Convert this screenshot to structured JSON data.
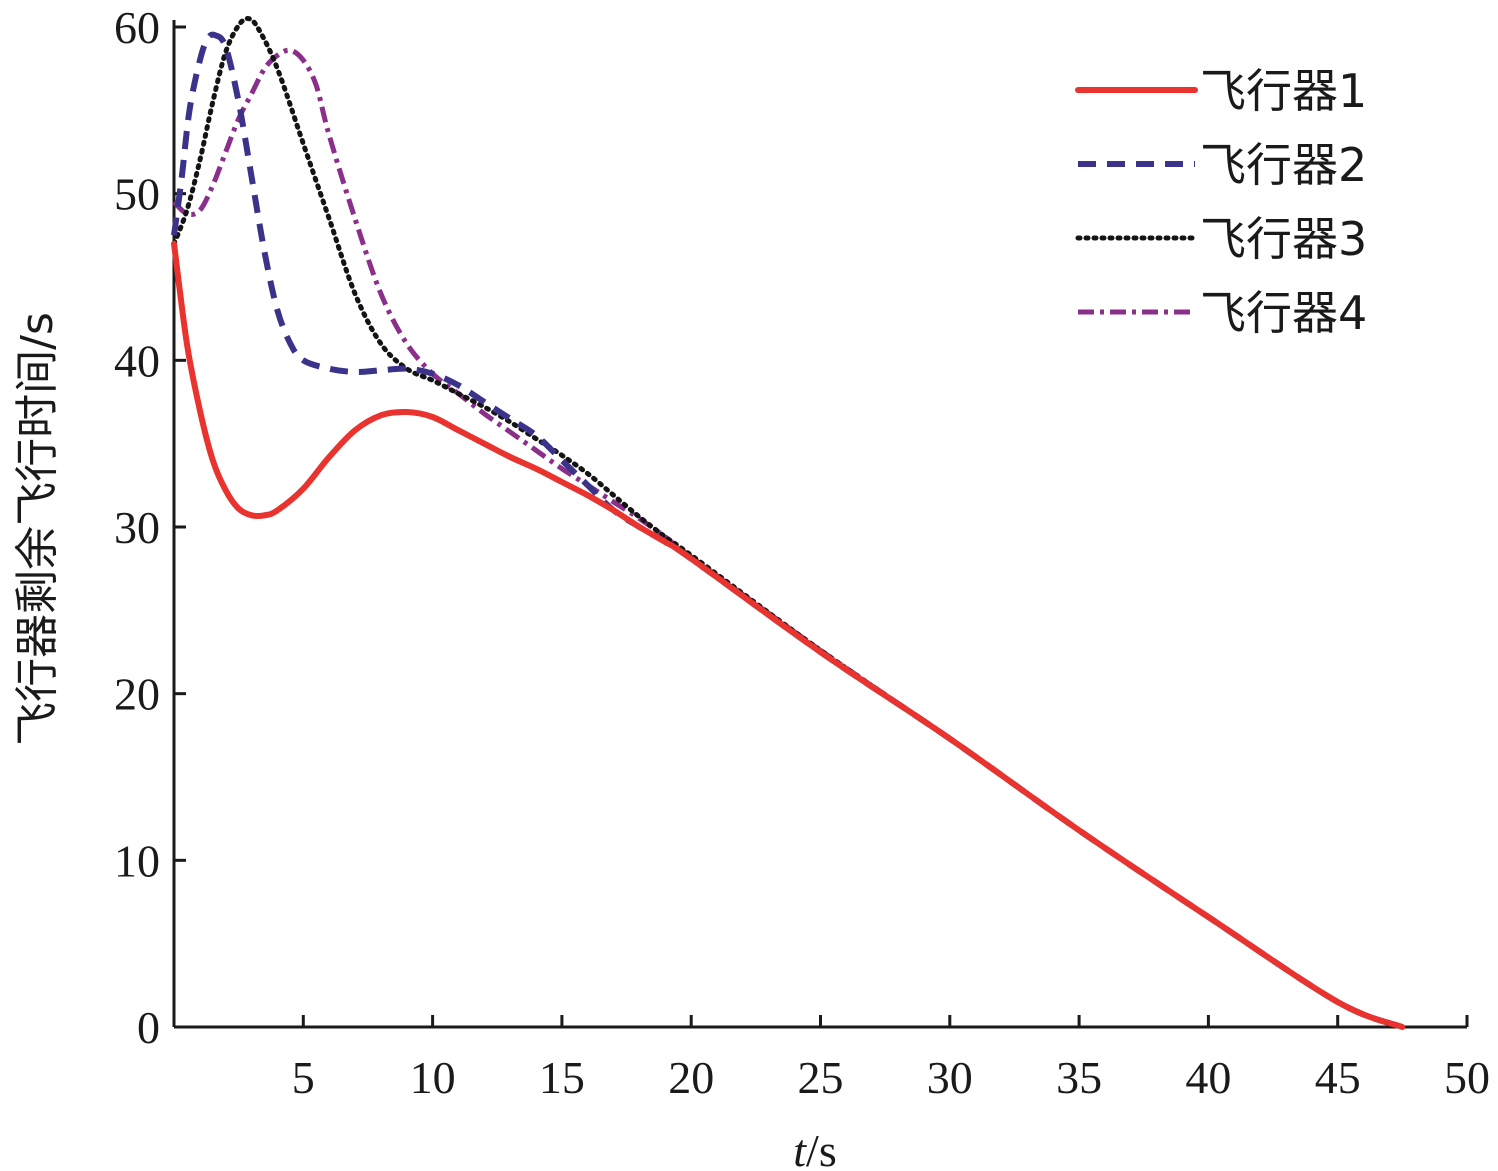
{
  "chart_data": {
    "type": "line",
    "xlabel": {
      "italic": "t",
      "unit": "/s"
    },
    "ylabel": "飞行器剩余飞行时间/s",
    "xlim": [
      0,
      50
    ],
    "ylim": [
      0,
      60
    ],
    "xticks": [
      5,
      10,
      15,
      20,
      25,
      30,
      35,
      40,
      45,
      50
    ],
    "yticks": [
      0,
      10,
      20,
      30,
      40,
      50,
      60
    ],
    "grid": false,
    "legend_position": "top-right",
    "series": [
      {
        "name": "飞行器1",
        "color": "#e8332f",
        "style": "solid",
        "points": [
          [
            0,
            47
          ],
          [
            0.5,
            41
          ],
          [
            1,
            37
          ],
          [
            1.5,
            34
          ],
          [
            2,
            32.2
          ],
          [
            2.5,
            31.1
          ],
          [
            3,
            30.7
          ],
          [
            3.5,
            30.7
          ],
          [
            4,
            31
          ],
          [
            5,
            32.3
          ],
          [
            6,
            34.2
          ],
          [
            7,
            35.8
          ],
          [
            8,
            36.7
          ],
          [
            9,
            36.9
          ],
          [
            10,
            36.6
          ],
          [
            11,
            35.8
          ],
          [
            12,
            35
          ],
          [
            13,
            34.2
          ],
          [
            14,
            33.5
          ],
          [
            15,
            32.7
          ],
          [
            16,
            31.9
          ],
          [
            17,
            31
          ],
          [
            18,
            30
          ],
          [
            19,
            29.1
          ],
          [
            20,
            28.1
          ],
          [
            25,
            22.5
          ],
          [
            30,
            17.3
          ],
          [
            35,
            11.8
          ],
          [
            40,
            6.6
          ],
          [
            45,
            1.5
          ],
          [
            47.5,
            0
          ]
        ]
      },
      {
        "name": "飞行器2",
        "color": "#3a3389",
        "style": "dashed",
        "points": [
          [
            0,
            47.5
          ],
          [
            0.3,
            51
          ],
          [
            0.6,
            55
          ],
          [
            1,
            58
          ],
          [
            1.3,
            59.3
          ],
          [
            1.6,
            59.5
          ],
          [
            2,
            58.8
          ],
          [
            2.5,
            55.5
          ],
          [
            3,
            51
          ],
          [
            3.5,
            46.5
          ],
          [
            4,
            43
          ],
          [
            4.5,
            41
          ],
          [
            5,
            40
          ],
          [
            6,
            39.5
          ],
          [
            7,
            39.3
          ],
          [
            8,
            39.4
          ],
          [
            9,
            39.5
          ],
          [
            10,
            39.2
          ],
          [
            11,
            38.5
          ],
          [
            12,
            37.5
          ],
          [
            13,
            36.5
          ],
          [
            14,
            35.5
          ],
          [
            15,
            34
          ],
          [
            16,
            32.5
          ],
          [
            17,
            31
          ],
          [
            18,
            30
          ],
          [
            19,
            29.1
          ],
          [
            20,
            28.1
          ],
          [
            25,
            22.5
          ],
          [
            30,
            17.3
          ],
          [
            35,
            11.8
          ],
          [
            40,
            6.6
          ],
          [
            45,
            1.5
          ],
          [
            47.5,
            0
          ]
        ]
      },
      {
        "name": "飞行器3",
        "color": "#141414",
        "style": "dotted",
        "points": [
          [
            0,
            47
          ],
          [
            0.5,
            49
          ],
          [
            1,
            52
          ],
          [
            1.5,
            55.5
          ],
          [
            2,
            58.5
          ],
          [
            2.5,
            60.1
          ],
          [
            2.9,
            60.5
          ],
          [
            3.3,
            59.8
          ],
          [
            4,
            57.5
          ],
          [
            5,
            53
          ],
          [
            6,
            48.5
          ],
          [
            7,
            44
          ],
          [
            8,
            41
          ],
          [
            9,
            39.5
          ],
          [
            10,
            38.8
          ],
          [
            11,
            38
          ],
          [
            12,
            37.2
          ],
          [
            13,
            36.3
          ],
          [
            14,
            35.3
          ],
          [
            15,
            34.3
          ],
          [
            16,
            33.2
          ],
          [
            17,
            31.9
          ],
          [
            18,
            30.6
          ],
          [
            19,
            29.4
          ],
          [
            20,
            28.3
          ],
          [
            25,
            22.6
          ],
          [
            30,
            17.3
          ],
          [
            35,
            11.8
          ],
          [
            40,
            6.6
          ],
          [
            45,
            1.5
          ],
          [
            47.5,
            0
          ]
        ]
      },
      {
        "name": "飞行器4",
        "color": "#8a2f8a",
        "style": "dashdot",
        "points": [
          [
            0,
            49.5
          ],
          [
            0.5,
            48.8
          ],
          [
            1,
            49
          ],
          [
            1.5,
            50.5
          ],
          [
            2,
            52.5
          ],
          [
            2.5,
            54.5
          ],
          [
            3,
            56
          ],
          [
            3.5,
            57.5
          ],
          [
            4,
            58.3
          ],
          [
            4.5,
            58.6
          ],
          [
            5,
            58
          ],
          [
            5.5,
            56.5
          ],
          [
            6,
            53.5
          ],
          [
            7,
            48.5
          ],
          [
            8,
            44
          ],
          [
            9,
            41
          ],
          [
            10,
            39.2
          ],
          [
            11,
            38
          ],
          [
            12,
            36.8
          ],
          [
            13,
            35.7
          ],
          [
            14,
            34.6
          ],
          [
            15,
            33.5
          ],
          [
            16,
            32.5
          ],
          [
            17,
            31.5
          ],
          [
            18,
            30.5
          ],
          [
            19,
            29.4
          ],
          [
            20,
            28.2
          ],
          [
            25,
            22.6
          ],
          [
            30,
            17.3
          ],
          [
            35,
            11.8
          ],
          [
            40,
            6.6
          ],
          [
            45,
            1.5
          ],
          [
            47.5,
            0
          ]
        ]
      }
    ]
  }
}
